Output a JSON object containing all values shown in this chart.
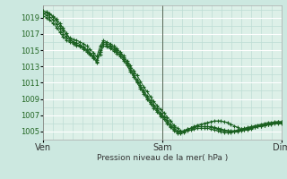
{
  "bg_color": "#cce8e0",
  "plot_bg_color": "#ddf0e8",
  "grid_color_major_y": "#ffffff",
  "grid_color_minor": "#bcddd4",
  "line_color": "#1a6020",
  "ylabel_text": "Pression niveau de la mer( hPa )",
  "x_ticks_pos": [
    0,
    144,
    288
  ],
  "x_tick_labels": [
    "Ven",
    "Sam",
    "Dim"
  ],
  "ylim": [
    1004.0,
    1020.5
  ],
  "yticks": [
    1005,
    1007,
    1009,
    1011,
    1013,
    1015,
    1017,
    1019
  ],
  "series": [
    [
      1019.5,
      1019.6,
      1019.4,
      1019.1,
      1018.6,
      1018.0,
      1017.4,
      1016.8,
      1016.5,
      1016.3,
      1016.2,
      1016.0,
      1015.8,
      1015.5,
      1015.1,
      1014.7,
      1014.2,
      1015.5,
      1016.2,
      1016.0,
      1015.8,
      1015.5,
      1015.2,
      1014.8,
      1014.3,
      1013.7,
      1013.1,
      1012.5,
      1011.9,
      1011.2,
      1010.5,
      1009.9,
      1009.3,
      1008.7,
      1008.2,
      1007.7,
      1007.3,
      1006.8,
      1006.3,
      1005.8,
      1005.4,
      1005.1,
      1005.0,
      1005.2,
      1005.4,
      1005.6,
      1005.8,
      1005.9,
      1006.0,
      1006.1,
      1006.2,
      1006.3,
      1006.3,
      1006.3,
      1006.2,
      1006.1,
      1005.9,
      1005.7,
      1005.5,
      1005.3,
      1005.2,
      1005.2,
      1005.3,
      1005.5,
      1005.6,
      1005.7,
      1005.8,
      1005.9,
      1006.0,
      1006.1,
      1006.1,
      1006.0
    ],
    [
      1019.8,
      1019.7,
      1019.5,
      1019.2,
      1018.8,
      1018.3,
      1017.7,
      1017.1,
      1016.4,
      1016.0,
      1015.7,
      1015.5,
      1015.3,
      1015.0,
      1014.6,
      1014.1,
      1013.6,
      1014.8,
      1015.8,
      1015.6,
      1015.4,
      1015.1,
      1014.8,
      1014.4,
      1013.9,
      1013.3,
      1012.6,
      1011.9,
      1011.2,
      1010.5,
      1009.8,
      1009.2,
      1008.6,
      1008.1,
      1007.6,
      1007.1,
      1006.7,
      1006.2,
      1005.7,
      1005.3,
      1005.0,
      1005.0,
      1005.1,
      1005.3,
      1005.4,
      1005.5,
      1005.6,
      1005.6,
      1005.6,
      1005.6,
      1005.6,
      1005.5,
      1005.4,
      1005.3,
      1005.2,
      1005.1,
      1005.0,
      1005.0,
      1005.0,
      1005.1,
      1005.2,
      1005.3,
      1005.4,
      1005.5,
      1005.6,
      1005.7,
      1005.8,
      1005.9,
      1006.0,
      1006.1,
      1006.2,
      1006.2
    ],
    [
      1019.2,
      1019.0,
      1018.7,
      1018.3,
      1017.8,
      1017.2,
      1016.6,
      1016.2,
      1016.0,
      1015.8,
      1015.6,
      1015.4,
      1015.1,
      1014.8,
      1014.4,
      1014.0,
      1013.5,
      1014.5,
      1015.5,
      1015.4,
      1015.2,
      1014.9,
      1014.6,
      1014.2,
      1013.7,
      1013.1,
      1012.4,
      1011.7,
      1011.0,
      1010.3,
      1009.6,
      1009.0,
      1008.4,
      1007.9,
      1007.4,
      1006.9,
      1006.5,
      1006.0,
      1005.5,
      1005.1,
      1004.8,
      1004.8,
      1004.9,
      1005.1,
      1005.2,
      1005.3,
      1005.4,
      1005.4,
      1005.4,
      1005.4,
      1005.3,
      1005.2,
      1005.1,
      1005.0,
      1004.9,
      1004.9,
      1004.9,
      1005.0,
      1005.1,
      1005.2,
      1005.3,
      1005.4,
      1005.5,
      1005.6,
      1005.7,
      1005.8,
      1005.8,
      1005.9,
      1005.9,
      1006.0,
      1006.0,
      1006.1
    ],
    [
      1019.5,
      1019.3,
      1019.1,
      1018.7,
      1018.2,
      1017.6,
      1017.0,
      1016.5,
      1016.2,
      1016.0,
      1015.9,
      1015.7,
      1015.4,
      1015.1,
      1014.7,
      1014.3,
      1013.8,
      1015.0,
      1016.0,
      1015.8,
      1015.6,
      1015.3,
      1015.0,
      1014.6,
      1014.1,
      1013.5,
      1012.8,
      1012.1,
      1011.4,
      1010.7,
      1010.0,
      1009.4,
      1008.8,
      1008.3,
      1007.8,
      1007.3,
      1006.9,
      1006.4,
      1005.9,
      1005.5,
      1005.1,
      1005.0,
      1005.1,
      1005.3,
      1005.4,
      1005.5,
      1005.6,
      1005.6,
      1005.6,
      1005.6,
      1005.5,
      1005.4,
      1005.3,
      1005.2,
      1005.1,
      1005.1,
      1005.1,
      1005.1,
      1005.2,
      1005.3,
      1005.4,
      1005.5,
      1005.6,
      1005.7,
      1005.8,
      1005.9,
      1006.0,
      1006.1,
      1006.1,
      1006.2,
      1006.2,
      1006.2
    ]
  ]
}
